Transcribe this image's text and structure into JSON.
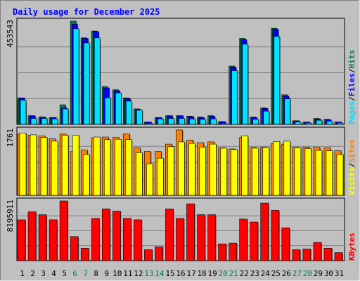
{
  "chart_data": [
    {
      "type": "bar",
      "title": "Daily usage for December 2025",
      "panel": "hits-files-pages",
      "categories": [
        "1",
        "2",
        "3",
        "4",
        "5",
        "6",
        "7",
        "8",
        "9",
        "10",
        "11",
        "12",
        "13",
        "14",
        "15",
        "16",
        "17",
        "18",
        "19",
        "20",
        "21",
        "22",
        "23",
        "24",
        "25",
        "26",
        "27",
        "28",
        "29",
        "30",
        "31"
      ],
      "weekend_days": [
        "6",
        "7",
        "13",
        "14",
        "20",
        "21",
        "27",
        "28"
      ],
      "ymax_label": "453543",
      "ylim": [
        0,
        453543
      ],
      "series": [
        {
          "name": "Hits",
          "color": "#008040",
          "values": [
            116000,
            38000,
            32000,
            30000,
            86000,
            453543,
            380000,
            410000,
            166000,
            152000,
            116000,
            68000,
            10000,
            30000,
            38000,
            38000,
            36000,
            32000,
            38000,
            12000,
            256000,
            378000,
            32000,
            72000,
            422000,
            130000,
            16000,
            10000,
            26000,
            22000,
            10000
          ]
        },
        {
          "name": "Files",
          "color": "#0000ff",
          "values": [
            116000,
            38000,
            32000,
            30000,
            72000,
            440000,
            378000,
            408000,
            160000,
            148000,
            114000,
            66000,
            10000,
            30000,
            38000,
            38000,
            34000,
            30000,
            36000,
            12000,
            252000,
            372000,
            30000,
            70000,
            418000,
            124000,
            16000,
            10000,
            24000,
            20000,
            10000
          ]
        },
        {
          "name": "Pages",
          "color": "#00e0ff",
          "values": [
            106000,
            26000,
            26000,
            24000,
            68000,
            420000,
            358000,
            380000,
            116000,
            138000,
            102000,
            62000,
            4000,
            24000,
            26000,
            26000,
            24000,
            22000,
            24000,
            4000,
            236000,
            352000,
            22000,
            58000,
            386000,
            112000,
            10000,
            6000,
            18000,
            14000,
            6000
          ]
        }
      ]
    },
    {
      "type": "bar",
      "panel": "sites-visits",
      "categories": [
        "1",
        "2",
        "3",
        "4",
        "5",
        "6",
        "7",
        "8",
        "9",
        "10",
        "11",
        "12",
        "13",
        "14",
        "15",
        "16",
        "17",
        "18",
        "19",
        "20",
        "21",
        "22",
        "23",
        "24",
        "25",
        "26",
        "27",
        "28",
        "29",
        "30",
        "31"
      ],
      "ymax_label": "1761",
      "ylim": [
        0,
        1761
      ],
      "series": [
        {
          "name": "Sites",
          "color": "#ff8000",
          "values": [
            1650,
            1620,
            1600,
            1520,
            1650,
            1180,
            1220,
            1550,
            1570,
            1560,
            1650,
            1280,
            1180,
            1180,
            1380,
            1761,
            1490,
            1420,
            1440,
            1280,
            1250,
            1560,
            1290,
            1300,
            1400,
            1380,
            1290,
            1300,
            1290,
            1280,
            1200
          ]
        },
        {
          "name": "Visits",
          "color": "#ffff00",
          "values": [
            1680,
            1630,
            1560,
            1460,
            1620,
            1620,
            1100,
            1570,
            1500,
            1510,
            1500,
            1150,
            850,
            1000,
            1310,
            1440,
            1400,
            1300,
            1380,
            1270,
            1230,
            1600,
            1270,
            1290,
            1450,
            1460,
            1280,
            1260,
            1210,
            1200,
            1100
          ]
        }
      ]
    },
    {
      "type": "bar",
      "panel": "kbytes",
      "categories": [
        "1",
        "2",
        "3",
        "4",
        "5",
        "6",
        "7",
        "8",
        "9",
        "10",
        "11",
        "12",
        "13",
        "14",
        "15",
        "16",
        "17",
        "18",
        "19",
        "20",
        "21",
        "22",
        "23",
        "24",
        "25",
        "26",
        "27",
        "28",
        "29",
        "30",
        "31"
      ],
      "ymax_label": "8195911",
      "ylim": [
        0,
        8195911
      ],
      "series": [
        {
          "name": "KBytes",
          "color": "#ff0000",
          "values": [
            5600000,
            6700000,
            6300000,
            5600000,
            8195911,
            3300000,
            1700000,
            5800000,
            7100000,
            6800000,
            5800000,
            5600000,
            1500000,
            1900000,
            7100000,
            5800000,
            7800000,
            6300000,
            6300000,
            2300000,
            2400000,
            5700000,
            5300000,
            7900000,
            6900000,
            4500000,
            1500000,
            1600000,
            2500000,
            1700000,
            1100000
          ]
        }
      ]
    }
  ]
}
